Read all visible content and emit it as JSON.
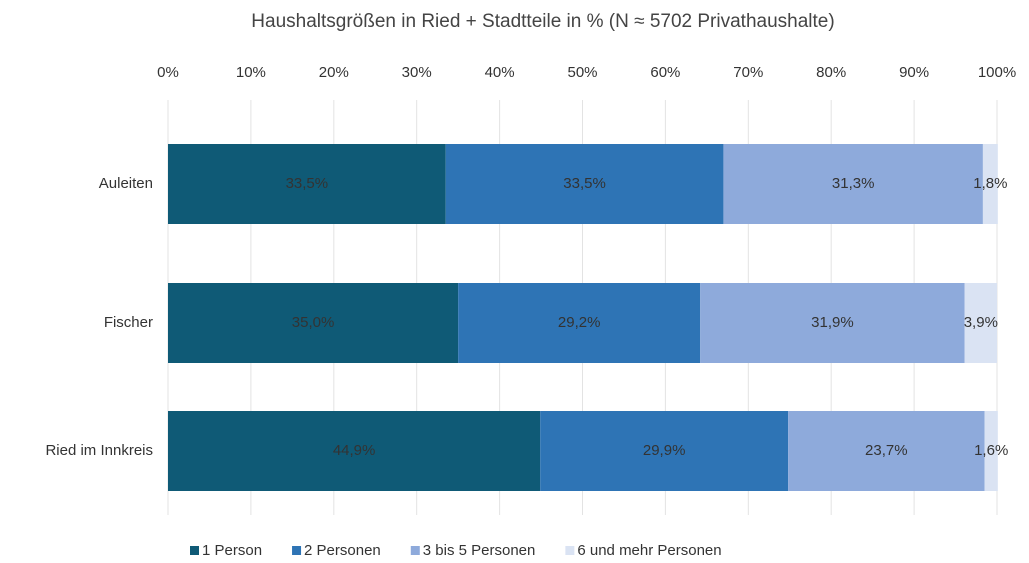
{
  "chart_data": {
    "type": "stacked-bar-horizontal",
    "title": "Haushaltsgrößen in Ried + Stadtteile in % (N ≈ 5702 Privathaushalte)",
    "categories": [
      "Auleiten",
      "Fischer",
      "Ried im Innkreis"
    ],
    "series": [
      {
        "name": "1 Person",
        "color": "#0f5a76",
        "values": [
          33.5,
          35.0,
          44.9
        ],
        "value_labels": [
          "33,5%",
          "35,0%",
          "44,9%"
        ]
      },
      {
        "name": "2 Personen",
        "color": "#2e74b5",
        "values": [
          33.5,
          29.2,
          29.9
        ],
        "value_labels": [
          "33,5%",
          "29,2%",
          "29,9%"
        ]
      },
      {
        "name": "3 bis 5 Personen",
        "color": "#8eaadb",
        "values": [
          31.3,
          31.9,
          23.7
        ],
        "value_labels": [
          "31,3%",
          "31,9%",
          "23,7%"
        ]
      },
      {
        "name": "6 und mehr Personen",
        "color": "#dae3f3",
        "values": [
          1.8,
          3.9,
          1.6
        ],
        "value_labels": [
          "1,8%",
          "3,9%",
          "1,6%"
        ]
      }
    ],
    "xlim": [
      0,
      100
    ],
    "xticks": [
      {
        "value": 0,
        "label": "0%"
      },
      {
        "value": 10,
        "label": "10%"
      },
      {
        "value": 20,
        "label": "20%"
      },
      {
        "value": 30,
        "label": "30%"
      },
      {
        "value": 40,
        "label": "40%"
      },
      {
        "value": 50,
        "label": "50%"
      },
      {
        "value": 60,
        "label": "60%"
      },
      {
        "value": 70,
        "label": "70%"
      },
      {
        "value": 80,
        "label": "80%"
      },
      {
        "value": 90,
        "label": "90%"
      },
      {
        "value": 100,
        "label": "100%"
      }
    ],
    "grid": true,
    "legend": "bottom"
  }
}
